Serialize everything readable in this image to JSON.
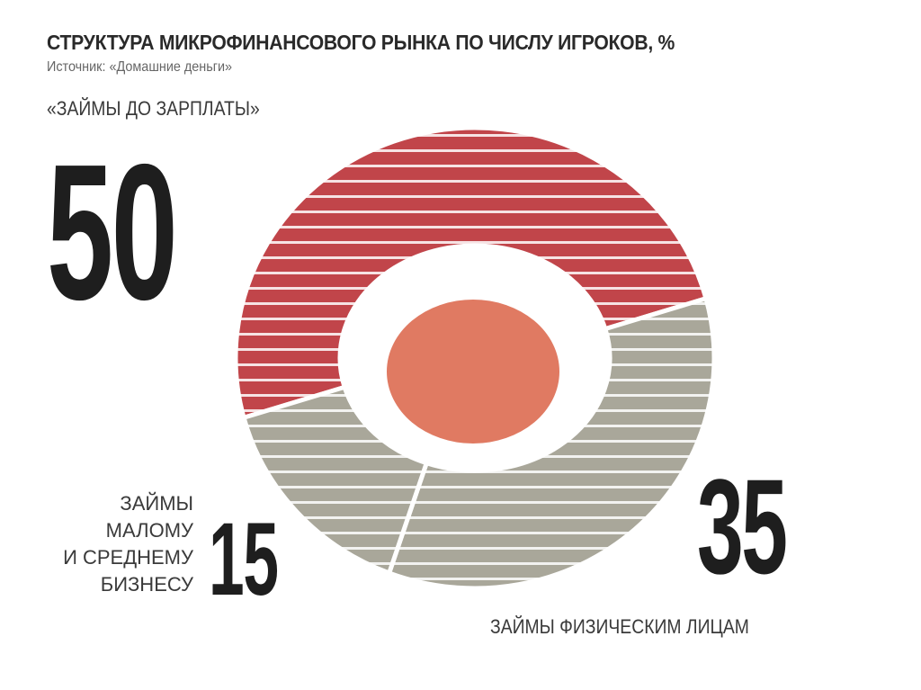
{
  "chart_data": {
    "type": "pie",
    "variant": "donut",
    "title": "СТРУКТУРА МИКРОФИНАНСОВОГО РЫНКА ПО ЧИСЛУ ИГРОКОВ, %",
    "subtitle": "Источник: «Домашние деньги»",
    "slices": [
      {
        "label": "«ЗАЙМЫ ДО ЗАРПЛАТЫ»",
        "value": 50,
        "value_label": "50",
        "color": "#c1454a"
      },
      {
        "label": "ЗАЙМЫ ФИЗИЧЕСКИМ ЛИЦАМ",
        "value": 35,
        "value_label": "35",
        "color": "#a9a79a"
      },
      {
        "label_lines": [
          "ЗАЙМЫ",
          "МАЛОМУ",
          "И СРЕДНЕМУ",
          "БИЗНЕСУ"
        ],
        "value": 15,
        "value_label": "15",
        "color": "#a9a79a"
      }
    ],
    "center_color": "#e07a62"
  }
}
